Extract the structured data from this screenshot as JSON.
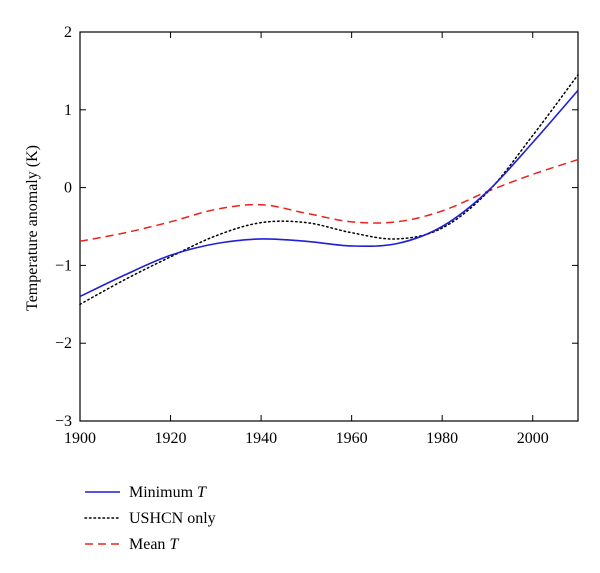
{
  "chart_data": {
    "type": "line",
    "title": "",
    "xlabel": "",
    "ylabel": "Temperature anomaly (K)",
    "xlim": [
      1900,
      2010
    ],
    "ylim": [
      -3,
      2
    ],
    "x_ticks": [
      1900,
      1920,
      1940,
      1960,
      1980,
      2000
    ],
    "y_ticks": [
      -3,
      -2,
      -1,
      0,
      1,
      2
    ],
    "x_tick_labels": [
      "1900",
      "1920",
      "1940",
      "1960",
      "1980",
      "2000"
    ],
    "y_tick_labels": [
      "−3",
      "−2",
      "−1",
      "0",
      "1",
      "2"
    ],
    "grid": false,
    "legend_position": "bottom-left, below plot",
    "x": [
      1900,
      1910,
      1920,
      1930,
      1940,
      1950,
      1960,
      1970,
      1980,
      1990,
      2000,
      2010
    ],
    "series": [
      {
        "name": "Minimum T",
        "legend_label": {
          "main": "Minimum ",
          "italic": "T"
        },
        "color": "#1f1fd6",
        "style": "solid",
        "values": [
          -1.4,
          -1.12,
          -0.87,
          -0.72,
          -0.66,
          -0.69,
          -0.75,
          -0.72,
          -0.5,
          -0.05,
          0.58,
          1.25
        ]
      },
      {
        "name": "USHCN only",
        "legend_label": {
          "main": "USHCN only",
          "italic": ""
        },
        "color": "#000000",
        "style": "dotted",
        "values": [
          -1.5,
          -1.18,
          -0.89,
          -0.62,
          -0.45,
          -0.45,
          -0.58,
          -0.66,
          -0.52,
          -0.06,
          0.67,
          1.45
        ]
      },
      {
        "name": "Mean T",
        "legend_label": {
          "main": "Mean ",
          "italic": "T"
        },
        "color": "#e8231b",
        "style": "dashed",
        "values": [
          -0.69,
          -0.58,
          -0.44,
          -0.28,
          -0.22,
          -0.33,
          -0.44,
          -0.44,
          -0.3,
          -0.05,
          0.17,
          0.36
        ]
      }
    ]
  }
}
